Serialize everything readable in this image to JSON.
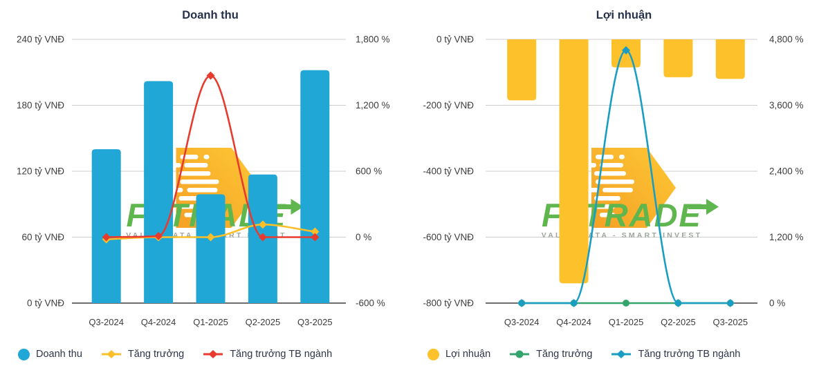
{
  "watermark": {
    "brand_left": "FI",
    "brand_right": "TRADE",
    "subtitle": "VALUE DATA - SMART INVEST",
    "text_color": "#5BB449",
    "subtitle_color": "#9BA39B",
    "arrow_gradient_start": "#F59E1F",
    "arrow_gradient_end": "#FDC62F"
  },
  "colors": {
    "grid": "#CCCCCC",
    "axis_line": "#3D3D3D",
    "tick_text": "#3C3C3C",
    "title_text": "#273049",
    "legend_text": "#2F3448",
    "background": "#FFFFFF"
  },
  "chart_data": [
    {
      "type": "bar+line",
      "title": "Doanh thu",
      "categories": [
        "Q3-2024",
        "Q4-2024",
        "Q1-2025",
        "Q2-2025",
        "Q3-2025"
      ],
      "bar_series": {
        "name": "Doanh thu",
        "unit": "tỷ VNĐ",
        "color": "#21A7D6",
        "rounded": "top",
        "values": [
          140,
          202,
          99,
          117,
          212
        ]
      },
      "line_series": [
        {
          "name": "Tăng trưởng",
          "unit": "%",
          "color": "#FCBF2A",
          "marker": "diamond",
          "values": [
            -20,
            0,
            0,
            115,
            50
          ]
        },
        {
          "name": "Tăng trưởng TB ngành",
          "unit": "%",
          "color": "#E83B2F",
          "marker": "diamond",
          "values": [
            0,
            10,
            1470,
            0,
            0
          ]
        }
      ],
      "left_axis": {
        "min": 0,
        "max": 240,
        "tick_labels": [
          "240 tỷ VNĐ",
          "180 tỷ VNĐ",
          "120 tỷ VNĐ",
          "60 tỷ VNĐ",
          "0 tỷ VNĐ"
        ]
      },
      "right_axis": {
        "min": -600,
        "max": 1800,
        "tick_labels": [
          "1,800 %",
          "1,200 %",
          "600 %",
          "0 %",
          "-600 %"
        ]
      },
      "grid": true,
      "legend_position": "bottom",
      "legend": [
        {
          "label": "Doanh thu",
          "marker": "circle",
          "color": "#21A7D6"
        },
        {
          "label": "Tăng trưởng",
          "marker": "line-diamond",
          "color": "#FCBF2A"
        },
        {
          "label": "Tăng trưởng TB ngành",
          "marker": "line-diamond",
          "color": "#E83B2F"
        }
      ]
    },
    {
      "type": "bar+line",
      "title": "Lợi nhuận",
      "categories": [
        "Q3-2024",
        "Q4-2024",
        "Q1-2025",
        "Q2-2025",
        "Q3-2025"
      ],
      "bar_series": {
        "name": "Lợi nhuận",
        "unit": "tỷ VNĐ",
        "color": "#FCC12B",
        "rounded": "bottom",
        "values": [
          -185,
          -740,
          -85,
          -115,
          -120
        ]
      },
      "line_series": [
        {
          "name": "Tăng trưởng",
          "unit": "%",
          "color": "#33A46C",
          "marker": "circle",
          "values": [
            0,
            0,
            0,
            0,
            0
          ]
        },
        {
          "name": "Tăng trưởng TB ngành",
          "unit": "%",
          "color": "#1A9DC3",
          "marker": "diamond",
          "values": [
            0,
            0,
            4600,
            0,
            0
          ]
        }
      ],
      "left_axis": {
        "min": -800,
        "max": 0,
        "tick_labels": [
          "0 tỷ VNĐ",
          "-200 tỷ VNĐ",
          "-400 tỷ VNĐ",
          "-600 tỷ VNĐ",
          "-800 tỷ VNĐ"
        ]
      },
      "right_axis": {
        "min": 0,
        "max": 4800,
        "tick_labels": [
          "4,800 %",
          "3,600 %",
          "2,400 %",
          "1,200 %",
          "0 %"
        ]
      },
      "grid": true,
      "legend_position": "bottom",
      "legend": [
        {
          "label": "Lợi nhuận",
          "marker": "circle",
          "color": "#FCC12B"
        },
        {
          "label": "Tăng trưởng",
          "marker": "line-circle",
          "color": "#33A46C"
        },
        {
          "label": "Tăng trưởng TB ngành",
          "marker": "line-diamond",
          "color": "#1A9DC3"
        }
      ]
    }
  ]
}
